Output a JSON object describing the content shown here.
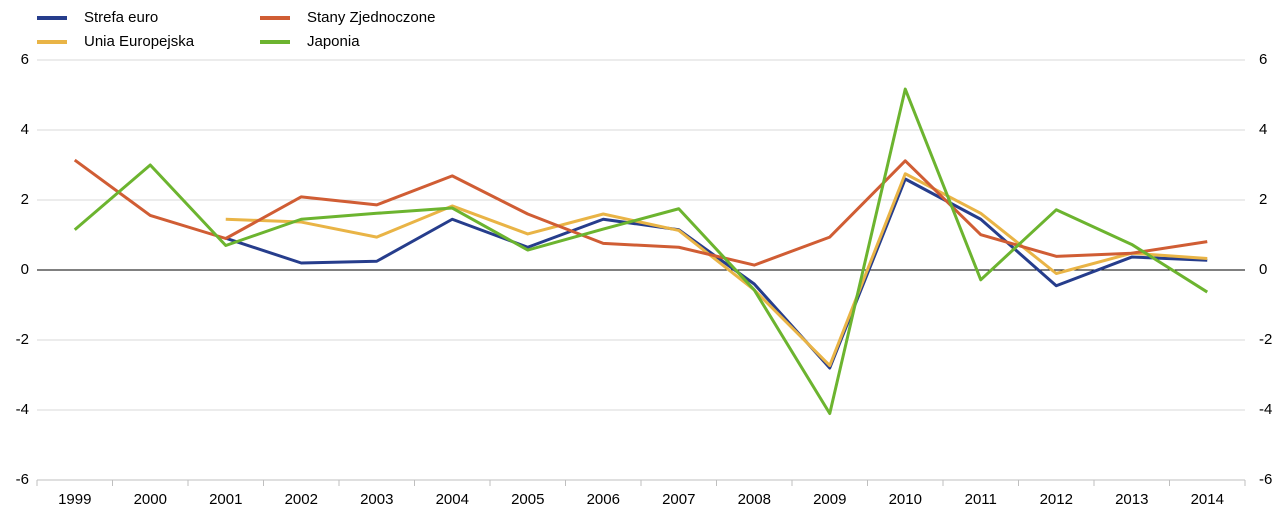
{
  "chart_data": {
    "type": "line",
    "categories": [
      "1999",
      "2000",
      "2001",
      "2002",
      "2003",
      "2004",
      "2005",
      "2006",
      "2007",
      "2008",
      "2009",
      "2010",
      "2011",
      "2012",
      "2013",
      "2014"
    ],
    "series": [
      {
        "name": "Strefa euro",
        "color": "#263d8c",
        "values": [
          null,
          null,
          0.91,
          0.2,
          0.25,
          1.45,
          0.65,
          1.45,
          1.15,
          -0.4,
          -2.8,
          2.6,
          1.45,
          -0.45,
          0.37,
          0.28
        ]
      },
      {
        "name": "Unia Europejska",
        "color": "#e9b446",
        "values": [
          null,
          null,
          1.45,
          1.37,
          0.94,
          1.83,
          1.03,
          1.6,
          1.13,
          -0.57,
          -2.73,
          2.75,
          1.62,
          -0.1,
          0.48,
          0.33
        ]
      },
      {
        "name": "Stany Zjednoczone",
        "color": "#d05d34",
        "values": [
          3.14,
          1.56,
          0.9,
          2.09,
          1.86,
          2.69,
          1.6,
          0.76,
          0.65,
          0.14,
          0.94,
          3.12,
          1.01,
          0.39,
          0.48,
          0.81
        ]
      },
      {
        "name": "Japonia",
        "color": "#6cb42f",
        "values": [
          1.15,
          3.0,
          0.7,
          1.45,
          1.62,
          1.77,
          0.57,
          1.17,
          1.75,
          -0.57,
          -4.1,
          5.17,
          -0.28,
          1.72,
          0.73,
          -0.63
        ]
      }
    ],
    "ylim": [
      -6,
      6
    ],
    "yticks": [
      -6,
      -4,
      -2,
      0,
      2,
      4,
      6
    ],
    "grid": true
  }
}
